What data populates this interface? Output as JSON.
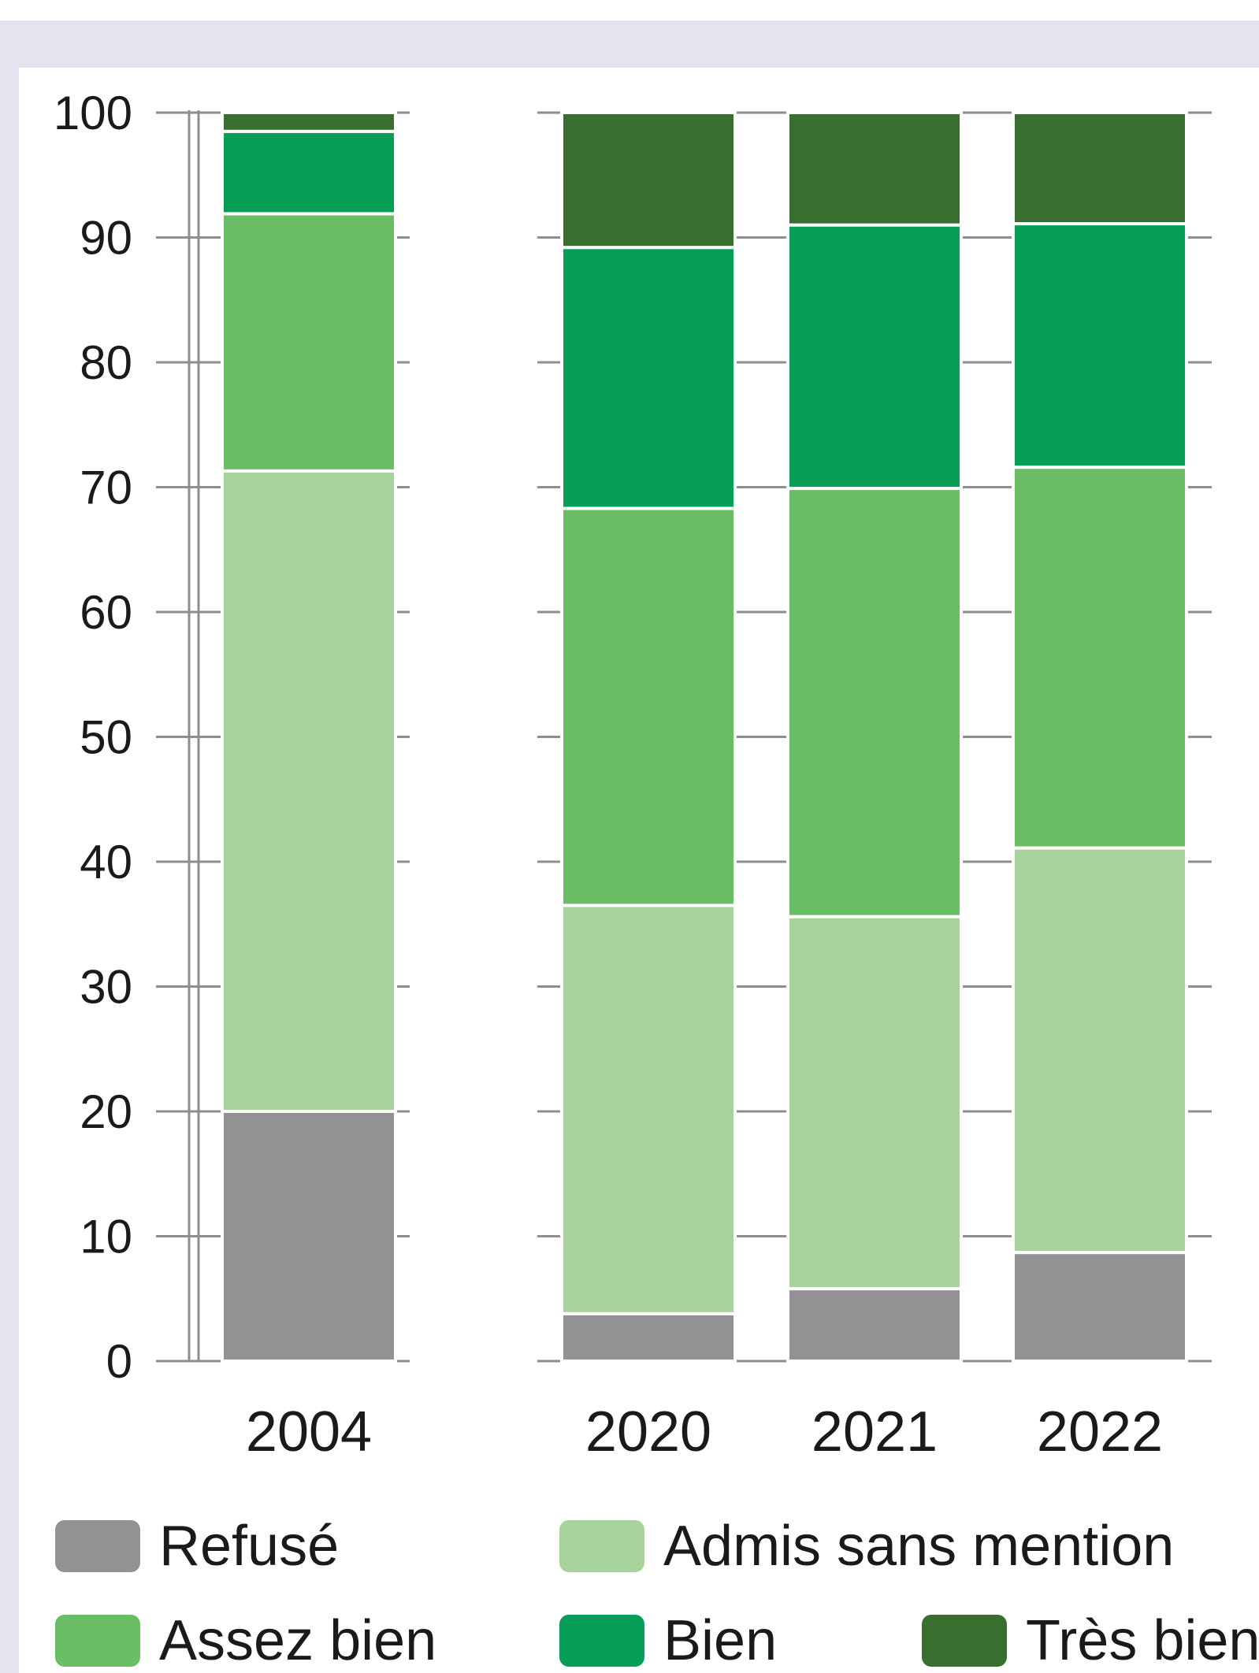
{
  "chart_data": {
    "type": "bar",
    "stacked": true,
    "ylim": [
      0,
      100
    ],
    "yticks": [
      0,
      10,
      20,
      30,
      40,
      50,
      60,
      70,
      80,
      90,
      100
    ],
    "grid": true,
    "legend_position": "bottom",
    "categories": [
      "2004",
      "2020",
      "2021",
      "2022"
    ],
    "series": [
      {
        "name": "Refusé",
        "color": "#929295",
        "values": [
          20.0,
          3.8,
          5.8,
          8.7
        ]
      },
      {
        "name": "Admis sans mention",
        "color": "#a6d39b",
        "values": [
          51.3,
          32.7,
          29.8,
          32.4
        ]
      },
      {
        "name": "Assez bien",
        "color": "#6bbd65",
        "values": [
          20.6,
          31.8,
          34.3,
          30.5
        ]
      },
      {
        "name": "Bien",
        "color": "#079e58",
        "values": [
          6.6,
          20.9,
          21.1,
          19.5
        ]
      },
      {
        "name": "Très bien",
        "color": "#386f2e",
        "values": [
          1.5,
          10.8,
          9.0,
          8.9
        ]
      }
    ],
    "legend": [
      {
        "label": "Refusé",
        "color": "#929295"
      },
      {
        "label": "Admis sans mention",
        "color": "#a6d39b"
      },
      {
        "label": "Assez bien",
        "color": "#6bbd65"
      },
      {
        "label": "Bien",
        "color": "#079e58"
      },
      {
        "label": "Très bien",
        "color": "#386f2e"
      }
    ]
  }
}
